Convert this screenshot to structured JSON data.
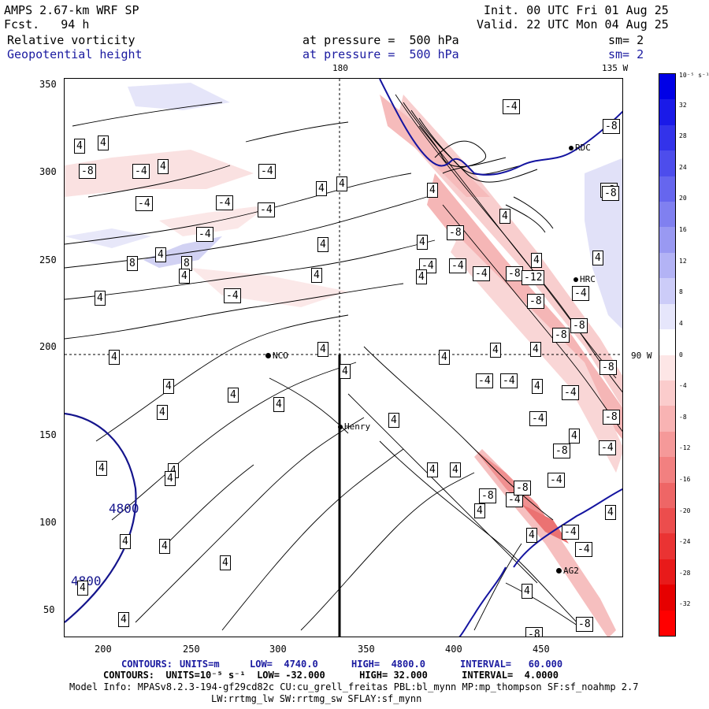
{
  "header": {
    "model": "AMPS 2.67-km WRF SP",
    "forecast": "Fcst.   94 h",
    "init": "Init. 00 UTC Fri 01 Aug 25",
    "valid": "Valid. 22 UTC Mon 04 Aug 25",
    "field1": {
      "name": "Relative vorticity",
      "pressure": "at pressure =  500 hPa",
      "sm": "sm= 2"
    },
    "field2": {
      "name": "Geopotential height",
      "pressure": "at pressure =  500 hPa",
      "sm": "sm= 2"
    }
  },
  "map": {
    "longitude_labels": {
      "top_180": "180",
      "top_135w": "135 W",
      "right_90w": "90 W"
    },
    "y_ticks": [
      "350",
      "300",
      "250",
      "200",
      "150",
      "100",
      "50"
    ],
    "x_ticks": [
      "200",
      "250",
      "300",
      "350",
      "400",
      "450"
    ],
    "stations": {
      "nco": "NCO",
      "henry": "Henry",
      "rdc": "RDC",
      "hrc": "HRC",
      "ag2": "AG2"
    },
    "height_labels": [
      "4800",
      "4800"
    ],
    "vort_labels": [
      "4",
      "-4",
      "8",
      "-8",
      "-12"
    ]
  },
  "colorbar": {
    "unit": "10⁻⁵ s⁻¹",
    "ticks": [
      "32",
      "28",
      "24",
      "20",
      "16",
      "12",
      "8",
      "4",
      "0",
      "-4",
      "-8",
      "-12",
      "-16",
      "-20",
      "-24",
      "-28",
      "-32"
    ],
    "colors": [
      "#0000e6",
      "#1a1ae8",
      "#3333ea",
      "#4d4dec",
      "#6666ee",
      "#8080f0",
      "#9999f2",
      "#b3b3f5",
      "#ccccf8",
      "#e6e6fb",
      "#ffffff",
      "#fde6e6",
      "#fbcccc",
      "#f8b3b3",
      "#f59999",
      "#f28080",
      "#ee6666",
      "#ec4d4d",
      "#ea3333",
      "#e81a1a",
      "#e60000",
      "#ff0000"
    ]
  },
  "footer": {
    "contours1": {
      "label": "CONTOURS:",
      "units": "UNITS=m",
      "low": "LOW=  4740.0",
      "high": "HIGH=  4800.0",
      "interval": "INTERVAL=   60.000"
    },
    "contours2": "CONTOURS:  UNITS=10⁻⁵ s⁻¹  LOW= -32.000      HIGH= 32.000      INTERVAL=  4.0000",
    "model_info": "Model Info: MPASv8.2.3-194-gf29cd82c CU:cu_grell_freitas PBL:bl_mynn MP:mp_thompson SF:sf_noahmp 2.7",
    "model_info2": "LW:rrtmg_lw SW:rrtmg_sw SFLAY:sf_mynn"
  }
}
